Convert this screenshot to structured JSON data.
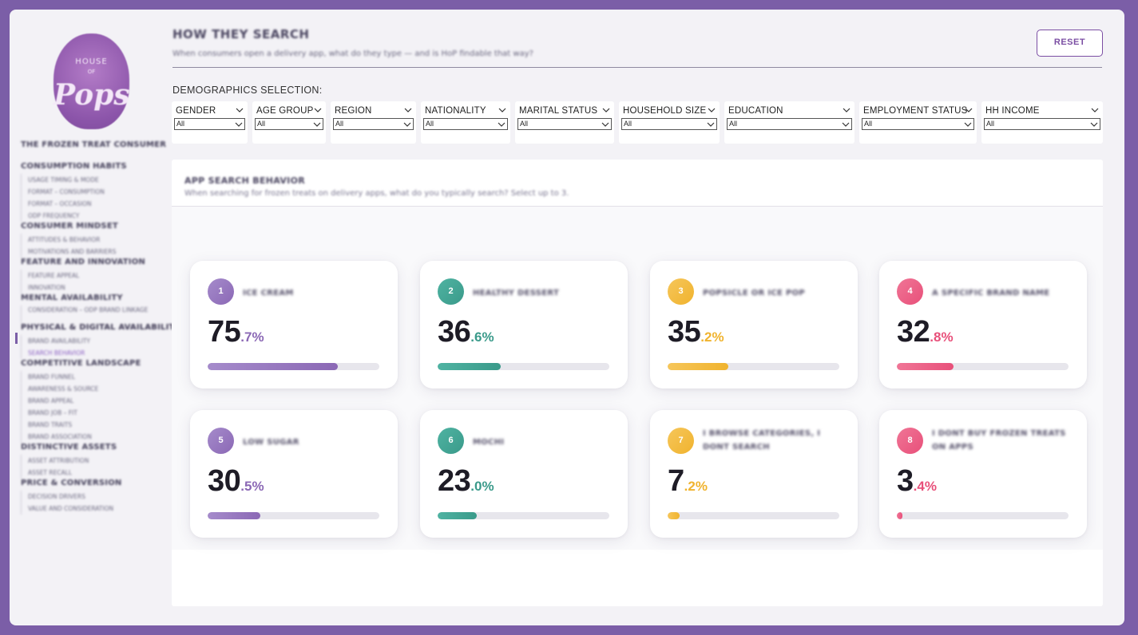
{
  "logo": {
    "line1": "HOUSE",
    "line2": "OF",
    "line3": "Pops"
  },
  "nav": {
    "top_title": "THE FROZEN TREAT CONSUMER",
    "sections": [
      {
        "title": "CONSUMPTION HABITS",
        "items": [
          "USAGE TIMING & MODE",
          "FORMAT – CONSUMPTION",
          "FORMAT – OCCASION",
          "ODP FREQUENCY"
        ]
      },
      {
        "title": "CONSUMER MINDSET",
        "items": [
          "ATTITUDES & BEHAVIOR",
          "MOTIVATIONS AND BARRIERS"
        ]
      },
      {
        "title": "FEATURE AND INNOVATION",
        "items": [
          "FEATURE APPEAL",
          "INNOVATION"
        ]
      },
      {
        "title": "MENTAL AVAILABILITY",
        "items": [
          "CONSIDERATION – ODP BRAND LINKAGE"
        ]
      },
      {
        "title": "PHYSICAL & DIGITAL AVAILABILITY",
        "items": [
          "BRAND AVAILABILITY",
          "SEARCH BEHAVIOR"
        ]
      },
      {
        "title": "COMPETITIVE LANDSCAPE",
        "items": [
          "BRAND FUNNEL",
          "AWARENESS & SOURCE",
          "BRAND APPEAL",
          "BRAND JOB – FIT",
          "BRAND TRAITS",
          "BRAND ASSOCIATION"
        ]
      },
      {
        "title": "DISTINCTIVE ASSETS",
        "items": [
          "ASSET ATTRIBUTION",
          "ASSET RECALL"
        ]
      },
      {
        "title": "PRICE & CONVERSION",
        "items": [
          "DECISION DRIVERS",
          "VALUE AND CONSIDERATION"
        ]
      }
    ]
  },
  "header": {
    "title": "HOW THEY SEARCH",
    "subtitle": "When consumers open a delivery app, what do they type — and is HoP findable that way?",
    "reset_label": "RESET"
  },
  "demographics": {
    "label": "DEMOGRAPHICS SELECTION:",
    "filters": [
      {
        "title": "GENDER",
        "value": "All"
      },
      {
        "title": "AGE GROUP",
        "value": "All"
      },
      {
        "title": "REGION",
        "value": "All"
      },
      {
        "title": "NATIONALITY",
        "value": "All"
      },
      {
        "title": "MARITAL STATUS",
        "value": "All"
      },
      {
        "title": "HOUSEHOLD SIZE",
        "value": "All"
      },
      {
        "title": "EDUCATION",
        "value": "All"
      },
      {
        "title": "EMPLOYMENT STATUS",
        "value": "All"
      },
      {
        "title": "HH INCOME",
        "value": "All"
      }
    ]
  },
  "panel": {
    "title": "APP SEARCH BEHAVIOR",
    "subtitle": "When searching for frozen treats on delivery apps, what do you typically search? Select up to 3."
  },
  "cards": [
    {
      "rank": "1",
      "label": "ICE CREAM",
      "int": "75",
      "dec": ".7%",
      "value": 75.7,
      "color": "#8b68b5",
      "light": "#a58bcb"
    },
    {
      "rank": "2",
      "label": "HEALTHY DESSERT",
      "int": "36",
      "dec": ".6%",
      "value": 36.6,
      "color": "#3a9a8a",
      "light": "#4fb3a2"
    },
    {
      "rank": "3",
      "label": "POPSICLE OR ICE POP",
      "int": "35",
      "dec": ".2%",
      "value": 35.2,
      "color": "#f0b32e",
      "light": "#f6c65a"
    },
    {
      "rank": "4",
      "label": "A SPECIFIC BRAND NAME",
      "int": "32",
      "dec": ".8%",
      "value": 32.8,
      "color": "#e8507a",
      "light": "#f07596"
    },
    {
      "rank": "5",
      "label": "LOW SUGAR",
      "int": "30",
      "dec": ".5%",
      "value": 30.5,
      "color": "#8b68b5",
      "light": "#a58bcb"
    },
    {
      "rank": "6",
      "label": "MOCHI",
      "int": "23",
      "dec": ".0%",
      "value": 23.0,
      "color": "#3a9a8a",
      "light": "#4fb3a2"
    },
    {
      "rank": "7",
      "label": "I BROWSE CATEGORIES, I DONT SEARCH",
      "int": "7",
      "dec": ".2%",
      "value": 7.2,
      "color": "#f0b32e",
      "light": "#f6c65a"
    },
    {
      "rank": "8",
      "label": "I DONT BUY FROZEN TREATS ON APPS",
      "int": "3",
      "dec": ".4%",
      "value": 3.4,
      "color": "#e8507a",
      "light": "#f07596"
    }
  ]
}
